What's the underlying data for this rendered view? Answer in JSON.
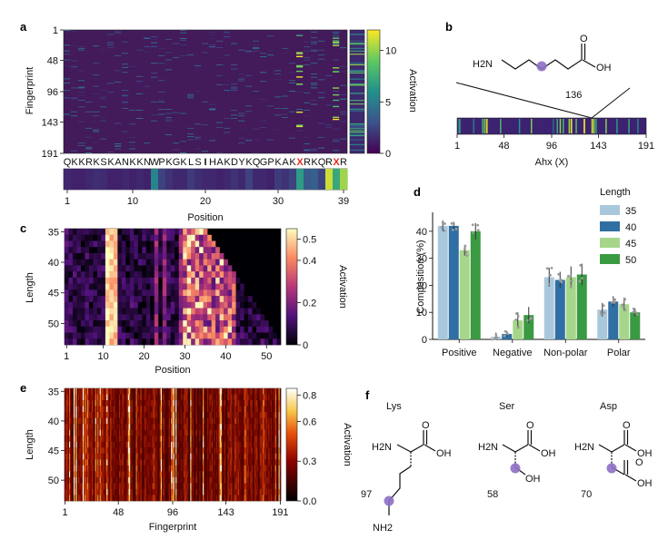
{
  "panels": {
    "a": {
      "label": "a",
      "ylabel": "Fingerprint",
      "yticks": [
        "1",
        "48",
        "96",
        "143",
        "191"
      ],
      "colorbar_label": "Activation",
      "colorbar_ticks": [
        "0",
        "5",
        "10"
      ],
      "sequence": "QKKRKSKANKKNWPKGKLSIHAKDYKQGPKAKXRKQRXR",
      "xlabel": "Position",
      "xticks": [
        "1",
        "10",
        "20",
        "30",
        "39"
      ]
    },
    "b": {
      "label": "b",
      "amine": "H2N",
      "acid_oh": "OH",
      "acid_o": "O",
      "marker_value": "136",
      "xlabel": "Ahx (X)",
      "xticks": [
        "1",
        "48",
        "96",
        "143",
        "191"
      ]
    },
    "c": {
      "label": "c",
      "ylabel": "Length",
      "yticks": [
        "35",
        "40",
        "45",
        "50"
      ],
      "xlabel": "Position",
      "xticks": [
        "1",
        "10",
        "20",
        "30",
        "40",
        "50"
      ],
      "colorbar_label": "Activation",
      "colorbar_ticks": [
        "0",
        "0.2",
        "0.4",
        "0.5"
      ]
    },
    "d": {
      "label": "d",
      "ylabel": "Composition (%)",
      "yticks": [
        "0",
        "10",
        "20",
        "30",
        "40"
      ],
      "legend_title": "Length",
      "categories": [
        "Positive",
        "Negative",
        "Non-polar",
        "Polar"
      ]
    },
    "e": {
      "label": "e",
      "ylabel": "Length",
      "yticks": [
        "35",
        "40",
        "45",
        "50"
      ],
      "xlabel": "Fingerprint",
      "xticks": [
        "1",
        "48",
        "96",
        "143",
        "191"
      ],
      "colorbar_label": "Activation",
      "colorbar_ticks": [
        "0.0",
        "0.3",
        "0.6",
        "0.8"
      ]
    },
    "f": {
      "label": "f",
      "molecules": [
        {
          "name": "Lys",
          "count": "97",
          "amine": "H2N",
          "oh": "OH",
          "o": "O",
          "side": "NH2"
        },
        {
          "name": "Ser",
          "count": "58",
          "amine": "H2N",
          "oh": "OH",
          "o": "O",
          "side": "OH"
        },
        {
          "name": "Asp",
          "count": "70",
          "amine": "H2N",
          "oh": "OH",
          "o": "O",
          "side_oh": "OH",
          "side_o": "O"
        }
      ]
    }
  },
  "chart_data": [
    {
      "id": "a",
      "type": "heatmap",
      "ylabel": "Fingerprint",
      "xlabel": "Position",
      "y_range": [
        1,
        191
      ],
      "x_range": [
        1,
        39
      ],
      "colorscale": "viridis",
      "colorbar_range": [
        0,
        12
      ],
      "highlight_positions": [
        33,
        38
      ],
      "highlight_color": "#e8291c"
    },
    {
      "id": "b",
      "type": "heatmap",
      "xlabel": "Ahx (X)",
      "x_range": [
        1,
        191
      ],
      "colorscale": "viridis",
      "marker": 136
    },
    {
      "id": "c",
      "type": "heatmap",
      "ylabel": "Length",
      "xlabel": "Position",
      "y_range": [
        35,
        53
      ],
      "x_range": [
        1,
        53
      ],
      "colorscale": "magma",
      "colorbar_range": [
        0,
        0.55
      ]
    },
    {
      "id": "d",
      "type": "bar",
      "ylabel": "Composition (%)",
      "ylim": [
        0,
        47
      ],
      "categories": [
        "Positive",
        "Negative",
        "Non-polar",
        "Polar"
      ],
      "legend_title": "Length",
      "legend_position": "top-right",
      "series": [
        {
          "name": "35",
          "color": "#a9c8dc",
          "values": [
            42,
            1,
            23,
            11
          ],
          "errors": [
            2,
            1.5,
            3.5,
            2.5
          ]
        },
        {
          "name": "40",
          "color": "#2f6fa3",
          "values": [
            42,
            2,
            22,
            14
          ],
          "errors": [
            1.5,
            1,
            3,
            2
          ]
        },
        {
          "name": "45",
          "color": "#a6d68a",
          "values": [
            33,
            7,
            23,
            13
          ],
          "errors": [
            2,
            3,
            4,
            2.5
          ]
        },
        {
          "name": "50",
          "color": "#3a9a41",
          "values": [
            40,
            9,
            24,
            10
          ],
          "errors": [
            3,
            3,
            4,
            1.5
          ]
        }
      ]
    },
    {
      "id": "e",
      "type": "heatmap",
      "ylabel": "Length",
      "xlabel": "Fingerprint",
      "y_range": [
        35,
        53
      ],
      "x_range": [
        1,
        191
      ],
      "colorscale": "afmhot",
      "colorbar_range": [
        0,
        0.85
      ]
    }
  ]
}
